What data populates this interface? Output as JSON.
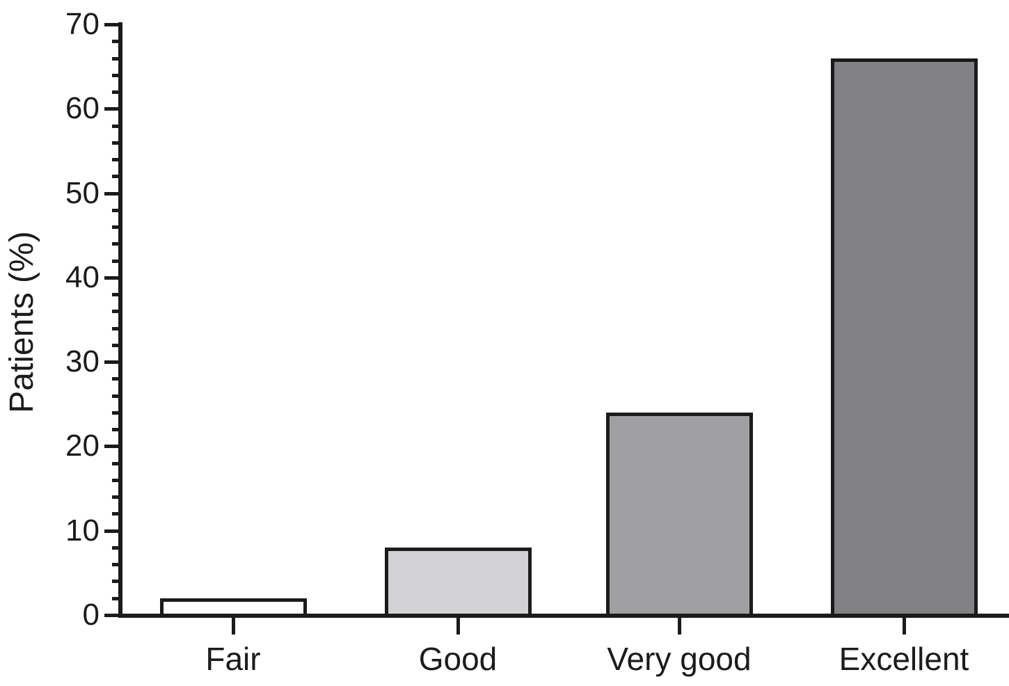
{
  "chart_data": {
    "type": "bar",
    "title": "",
    "categories": [
      "Fair",
      "Good",
      "Very good",
      "Excellent"
    ],
    "values": [
      2,
      8,
      24,
      66
    ],
    "xlabel": "",
    "ylabel": "Patients (%)",
    "ylim": [
      0,
      70
    ],
    "y_major_ticks": [
      0,
      10,
      20,
      30,
      40,
      50,
      60,
      70
    ],
    "y_minor_tick_step": 2,
    "grid": false,
    "legend": false,
    "colors": {
      "bar_fills": [
        "#ffffff",
        "#d2d2d4",
        "#a0a0a2",
        "#828285"
      ],
      "bar_border": "#1b1b1b",
      "axis": "#1b1b1b",
      "text": "#1b1b1b",
      "background": "#ffffff"
    }
  }
}
